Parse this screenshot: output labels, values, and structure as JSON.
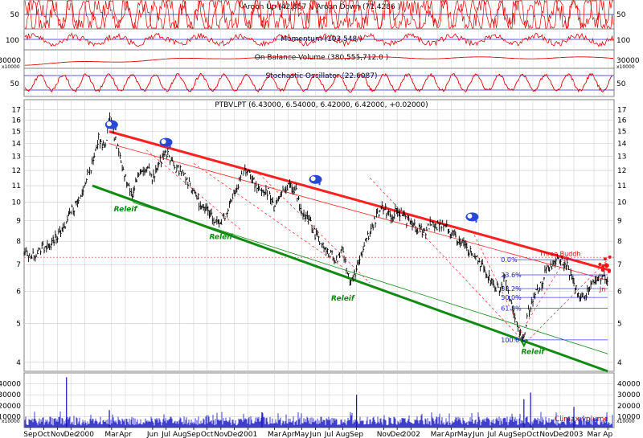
{
  "chart_data": {
    "type": "line",
    "colors": {
      "background": "#ffffff",
      "grid": "#c8c8c8",
      "panel_border": "#808080",
      "indicator_line": "#e00000",
      "reference_line": "#2020cc",
      "price": "#000000",
      "upper_trend": "#ff2020",
      "lower_trend": "#108a10",
      "volume_bars": "#1010c0",
      "fib_line": "#4040ff",
      "annotation_green": "#0a8a0a"
    },
    "indicators": [
      {
        "name": "aroon",
        "title": "Aroon Up (42.857 ), Aroon Down (71.4286 )",
        "y_ticks": [
          "50"
        ],
        "y_right_ticks": [
          "50"
        ]
      },
      {
        "name": "momentum",
        "title": "Momentum (103.548 )",
        "y_ticks": [
          "100"
        ],
        "y_right_ticks": [
          "100"
        ]
      },
      {
        "name": "obv",
        "title": "On Balance Volume (380,555,712.0 )",
        "y_ticks": [
          "30000"
        ],
        "y_right_ticks": [
          "30000"
        ],
        "unit_label": "x10000"
      },
      {
        "name": "stochastic",
        "title": "Stochastic Oscillator (22.6087)",
        "y_ticks": [
          "50"
        ],
        "y_right_ticks": [
          "50"
        ]
      }
    ],
    "main": {
      "title": "PTBVLPT (6.43000, 6.54000, 6.42000, 6.42000, +0.02000)",
      "y_scale": "log",
      "ylim": [
        3.8,
        18
      ],
      "y_ticks": [
        4,
        5,
        6,
        7,
        8,
        9,
        10,
        11,
        12,
        13,
        14,
        15,
        16,
        17
      ],
      "y_tick_labels": [
        "4",
        "5",
        "6",
        "7",
        "8",
        "9",
        "10",
        "11",
        "12",
        "13",
        "14",
        "15",
        "16",
        "17"
      ],
      "y_right_ticks": [
        4,
        5,
        6,
        7,
        8,
        9,
        10,
        11,
        12,
        13,
        14,
        15,
        16,
        17
      ],
      "y_right_tick_labels": [
        "4",
        "5",
        "6",
        "7",
        "8",
        "9",
        "10",
        "11",
        "12",
        "13",
        "14",
        "15",
        "16",
        "17"
      ],
      "price_series": [
        [
          "1999-09-01",
          7.6
        ],
        [
          "1999-09-15",
          7.3
        ],
        [
          "1999-10-01",
          7.5
        ],
        [
          "1999-10-15",
          7.7
        ],
        [
          "1999-11-01",
          7.9
        ],
        [
          "1999-11-15",
          8.3
        ],
        [
          "1999-12-01",
          8.7
        ],
        [
          "1999-12-15",
          9.5
        ],
        [
          "2000-01-01",
          10.0
        ],
        [
          "2000-01-15",
          11.2
        ],
        [
          "2000-02-01",
          12.5
        ],
        [
          "2000-02-15",
          14.5
        ],
        [
          "2000-03-01",
          13.5
        ],
        [
          "2000-03-10",
          16.3
        ],
        [
          "2000-03-20",
          14.8
        ],
        [
          "2000-04-01",
          13.2
        ],
        [
          "2000-04-15",
          11.5
        ],
        [
          "2000-05-01",
          10.4
        ],
        [
          "2000-05-15",
          11.8
        ],
        [
          "2000-06-01",
          12.2
        ],
        [
          "2000-06-15",
          11.5
        ],
        [
          "2000-07-01",
          12.7
        ],
        [
          "2000-07-15",
          13.4
        ],
        [
          "2000-08-01",
          12.3
        ],
        [
          "2000-08-15",
          12.0
        ],
        [
          "2000-09-01",
          11.3
        ],
        [
          "2000-09-15",
          10.7
        ],
        [
          "2000-10-01",
          9.8
        ],
        [
          "2000-10-15",
          9.6
        ],
        [
          "2000-11-01",
          9.0
        ],
        [
          "2000-11-15",
          8.9
        ],
        [
          "2000-12-01",
          9.6
        ],
        [
          "2000-12-15",
          10.4
        ],
        [
          "2001-01-01",
          11.8
        ],
        [
          "2001-01-15",
          12.0
        ],
        [
          "2001-02-01",
          11.0
        ],
        [
          "2001-02-15",
          10.5
        ],
        [
          "2001-03-01",
          10.7
        ],
        [
          "2001-03-15",
          9.6
        ],
        [
          "2001-04-01",
          10.6
        ],
        [
          "2001-04-15",
          11.0
        ],
        [
          "2001-05-01",
          10.8
        ],
        [
          "2001-05-15",
          9.4
        ],
        [
          "2001-06-01",
          9.0
        ],
        [
          "2001-06-15",
          8.3
        ],
        [
          "2001-07-01",
          7.9
        ],
        [
          "2001-07-15",
          7.5
        ],
        [
          "2001-08-01",
          7.2
        ],
        [
          "2001-08-15",
          7.6
        ],
        [
          "2001-09-01",
          6.3
        ],
        [
          "2001-09-15",
          6.8
        ],
        [
          "2001-10-01",
          7.8
        ],
        [
          "2001-10-15",
          8.4
        ],
        [
          "2001-11-01",
          9.3
        ],
        [
          "2001-11-15",
          9.7
        ],
        [
          "2001-12-01",
          9.2
        ],
        [
          "2001-12-15",
          9.5
        ],
        [
          "2002-01-01",
          9.2
        ],
        [
          "2002-01-15",
          8.8
        ],
        [
          "2002-02-01",
          8.6
        ],
        [
          "2002-02-15",
          8.4
        ],
        [
          "2002-03-01",
          8.9
        ],
        [
          "2002-03-15",
          8.7
        ],
        [
          "2002-04-01",
          8.8
        ],
        [
          "2002-04-15",
          8.4
        ],
        [
          "2002-05-01",
          8.1
        ],
        [
          "2002-05-15",
          7.8
        ],
        [
          "2002-06-01",
          7.5
        ],
        [
          "2002-06-15",
          7.2
        ],
        [
          "2002-07-01",
          6.7
        ],
        [
          "2002-07-15",
          6.3
        ],
        [
          "2002-08-01",
          6.0
        ],
        [
          "2002-08-15",
          6.5
        ],
        [
          "2002-09-01",
          5.3
        ],
        [
          "2002-09-15",
          4.8
        ],
        [
          "2002-09-25",
          4.55
        ],
        [
          "2002-10-05",
          5.3
        ],
        [
          "2002-10-20",
          5.9
        ],
        [
          "2002-11-01",
          6.2
        ],
        [
          "2002-11-15",
          6.8
        ],
        [
          "2002-12-01",
          7.0
        ],
        [
          "2002-12-15",
          7.2
        ],
        [
          "2003-01-01",
          6.9
        ],
        [
          "2003-01-15",
          6.3
        ],
        [
          "2003-02-01",
          5.8
        ],
        [
          "2003-02-15",
          6.0
        ],
        [
          "2003-03-01",
          6.3
        ],
        [
          "2003-03-15",
          6.5
        ],
        [
          "2003-04-01",
          6.42
        ]
      ],
      "upper_trend": [
        [
          "2000-03-10",
          15.0
        ],
        [
          "2003-04-01",
          6.8
        ]
      ],
      "upper_parallel": [
        [
          "2000-03-10",
          14.0
        ],
        [
          "2003-04-01",
          6.4
        ]
      ],
      "lower_trend": [
        [
          "2000-02-01",
          11.0
        ],
        [
          "2003-04-01",
          3.8
        ]
      ],
      "lower_parallel": [
        [
          "2000-05-01",
          10.0
        ],
        [
          "2003-04-01",
          4.2
        ]
      ],
      "channels": [
        [
          [
            "2000-06-01",
            13.5
          ],
          [
            "2001-01-01",
            8.5
          ]
        ],
        [
          [
            "2000-09-15",
            12.5
          ],
          [
            "2001-08-15",
            6.9
          ]
        ],
        [
          [
            "2001-02-01",
            12.0
          ],
          [
            "2001-10-15",
            6.3
          ]
        ],
        [
          [
            "2001-10-15",
            11.5
          ],
          [
            "2002-09-25",
            4.5
          ]
        ],
        [
          [
            "2002-06-01",
            8.5
          ],
          [
            "2002-10-01",
            4.5
          ]
        ],
        [
          [
            "2002-10-01",
            4.5
          ],
          [
            "2003-04-01",
            7.2
          ]
        ],
        [
          [
            "2002-10-01",
            5.0
          ],
          [
            "2003-01-01",
            7.4
          ]
        ]
      ],
      "fib_levels": [
        {
          "label": "0.0%",
          "value": 7.2
        },
        {
          "label": "23.6%",
          "value": 6.6
        },
        {
          "label": "38.2%",
          "value": 6.1
        },
        {
          "label": "50.0%",
          "value": 5.8
        },
        {
          "label": "61.8%",
          "value": 5.45
        },
        {
          "label": "100.0%",
          "value": 4.55
        }
      ],
      "fib_x_start": "2002-08-01",
      "fib_x_end": "2003-04-01",
      "annotations": [
        {
          "text": "Releif",
          "x": "2000-04-15",
          "y": 9.5,
          "color": "green"
        },
        {
          "text": "Releif",
          "x": "2000-11-15",
          "y": 8.1,
          "color": "green"
        },
        {
          "text": "Releif",
          "x": "2001-08-15",
          "y": 5.7,
          "color": "green"
        },
        {
          "text": "Releif",
          "x": "2002-10-15",
          "y": 4.2,
          "color": "green"
        },
        {
          "text": "Three Buddh",
          "x": "2002-12-15",
          "y": 7.35,
          "color": "red"
        },
        {
          "text": "Jn",
          "x": "2003-03-20",
          "y": 6.0,
          "color": "red"
        }
      ],
      "elephant_markers": [
        {
          "x": "2000-03-15",
          "y": 15.6
        },
        {
          "x": "2000-07-15",
          "y": 14.1
        },
        {
          "x": "2001-06-15",
          "y": 11.4
        },
        {
          "x": "2002-06-01",
          "y": 9.2
        }
      ]
    },
    "x_axis": {
      "tick_labels": [
        "Sep",
        "Oct",
        "Nov",
        "Dec",
        "2000",
        "Mar",
        "Apr",
        "Jun",
        "Jul",
        "Aug",
        "Sep",
        "Oct",
        "Nov",
        "Dec",
        "2001",
        "Mar",
        "Apr",
        "May",
        "Jun",
        "Jul",
        "Aug",
        "Sep",
        "Nov",
        "Dec",
        "2002",
        "Mar",
        "Apr",
        "May",
        "Jun",
        "Jul",
        "Aug",
        "Sep",
        "Oct",
        "Nov",
        "Dec",
        "2003",
        "Mar",
        "Ap"
      ],
      "tick_dates": [
        "1999-09-15",
        "1999-10-15",
        "1999-11-15",
        "1999-12-15",
        "2000-01-15",
        "2000-03-15",
        "2000-04-15",
        "2000-06-15",
        "2000-07-15",
        "2000-08-15",
        "2000-09-15",
        "2000-10-15",
        "2000-11-15",
        "2000-12-15",
        "2001-01-15",
        "2001-03-15",
        "2001-04-15",
        "2001-05-15",
        "2001-06-15",
        "2001-07-15",
        "2001-08-15",
        "2001-09-15",
        "2001-11-15",
        "2001-12-15",
        "2002-01-15",
        "2002-03-15",
        "2002-04-15",
        "2002-05-15",
        "2002-06-15",
        "2002-07-15",
        "2002-08-15",
        "2002-09-15",
        "2002-10-15",
        "2002-11-15",
        "2002-12-15",
        "2003-01-15",
        "2003-03-01",
        "2003-04-01"
      ],
      "range": [
        "1999-09-01",
        "2003-04-15"
      ]
    },
    "volume": {
      "y_ticks": [
        10000,
        20000,
        30000,
        40000
      ],
      "y_tick_labels": [
        "10000",
        "20000",
        "30000",
        "40000"
      ],
      "y_right_tick_labels": [
        "10000",
        "20000",
        "30000",
        "40000"
      ],
      "unit_label": "x10000",
      "ylim": [
        0,
        50000
      ],
      "label": "Climax volume",
      "spikes": [
        [
          "1999-12-05",
          46000
        ],
        [
          "2000-03-10",
          16000
        ],
        [
          "2001-02-15",
          14000
        ],
        [
          "2001-09-15",
          30000
        ],
        [
          "2002-09-25",
          26000
        ],
        [
          "2002-10-10",
          32000
        ],
        [
          "2003-01-15",
          19000
        ]
      ]
    }
  }
}
